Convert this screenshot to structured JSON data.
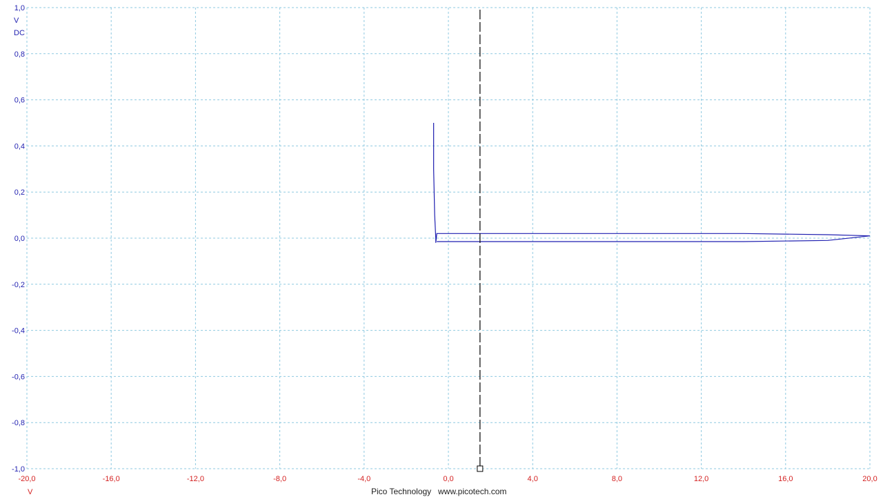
{
  "chart_data": {
    "type": "line",
    "mode": "XY",
    "x_unit": "V",
    "y_unit": "V",
    "y_coupling": "DC",
    "xlim": [
      -20,
      20
    ],
    "ylim": [
      -1,
      1
    ],
    "x_ticks": [
      "-20,0",
      "-16,0",
      "-12,0",
      "-8,0",
      "-4,0",
      "0,0",
      "4,0",
      "8,0",
      "12,0",
      "16,0",
      "20,0"
    ],
    "y_ticks": [
      "1,0",
      "0,8",
      "0,6",
      "0,4",
      "0,2",
      "0,0",
      "-0,2",
      "-0,4",
      "-0,6",
      "-0,8",
      "-1,0"
    ],
    "grid": true,
    "cursor_x": 1.5,
    "series": [
      {
        "color": "#1f1fb0",
        "trace": [
          [
            -0.7,
            0.5
          ],
          [
            -0.7,
            0.3
          ],
          [
            -0.65,
            0.1
          ],
          [
            -0.6,
            0.0
          ],
          [
            -0.6,
            -0.02
          ],
          [
            -0.55,
            0.02
          ],
          [
            2,
            0.02
          ],
          [
            6,
            0.02
          ],
          [
            10,
            0.02
          ],
          [
            14,
            0.02
          ],
          [
            18,
            0.015
          ],
          [
            20,
            0.01
          ],
          [
            18,
            -0.01
          ],
          [
            14,
            -0.015
          ],
          [
            10,
            -0.015
          ],
          [
            6,
            -0.015
          ],
          [
            2,
            -0.015
          ],
          [
            -0.55,
            -0.015
          ]
        ]
      }
    ]
  },
  "footer": {
    "brand": "Pico Technology",
    "url": "www.picotech.com"
  },
  "colors": {
    "y_axis": "#1f1fb0",
    "x_axis": "#d42020",
    "trace": "#1f1fb0",
    "grid": "#8ec9e0",
    "cursor": "#000000"
  }
}
